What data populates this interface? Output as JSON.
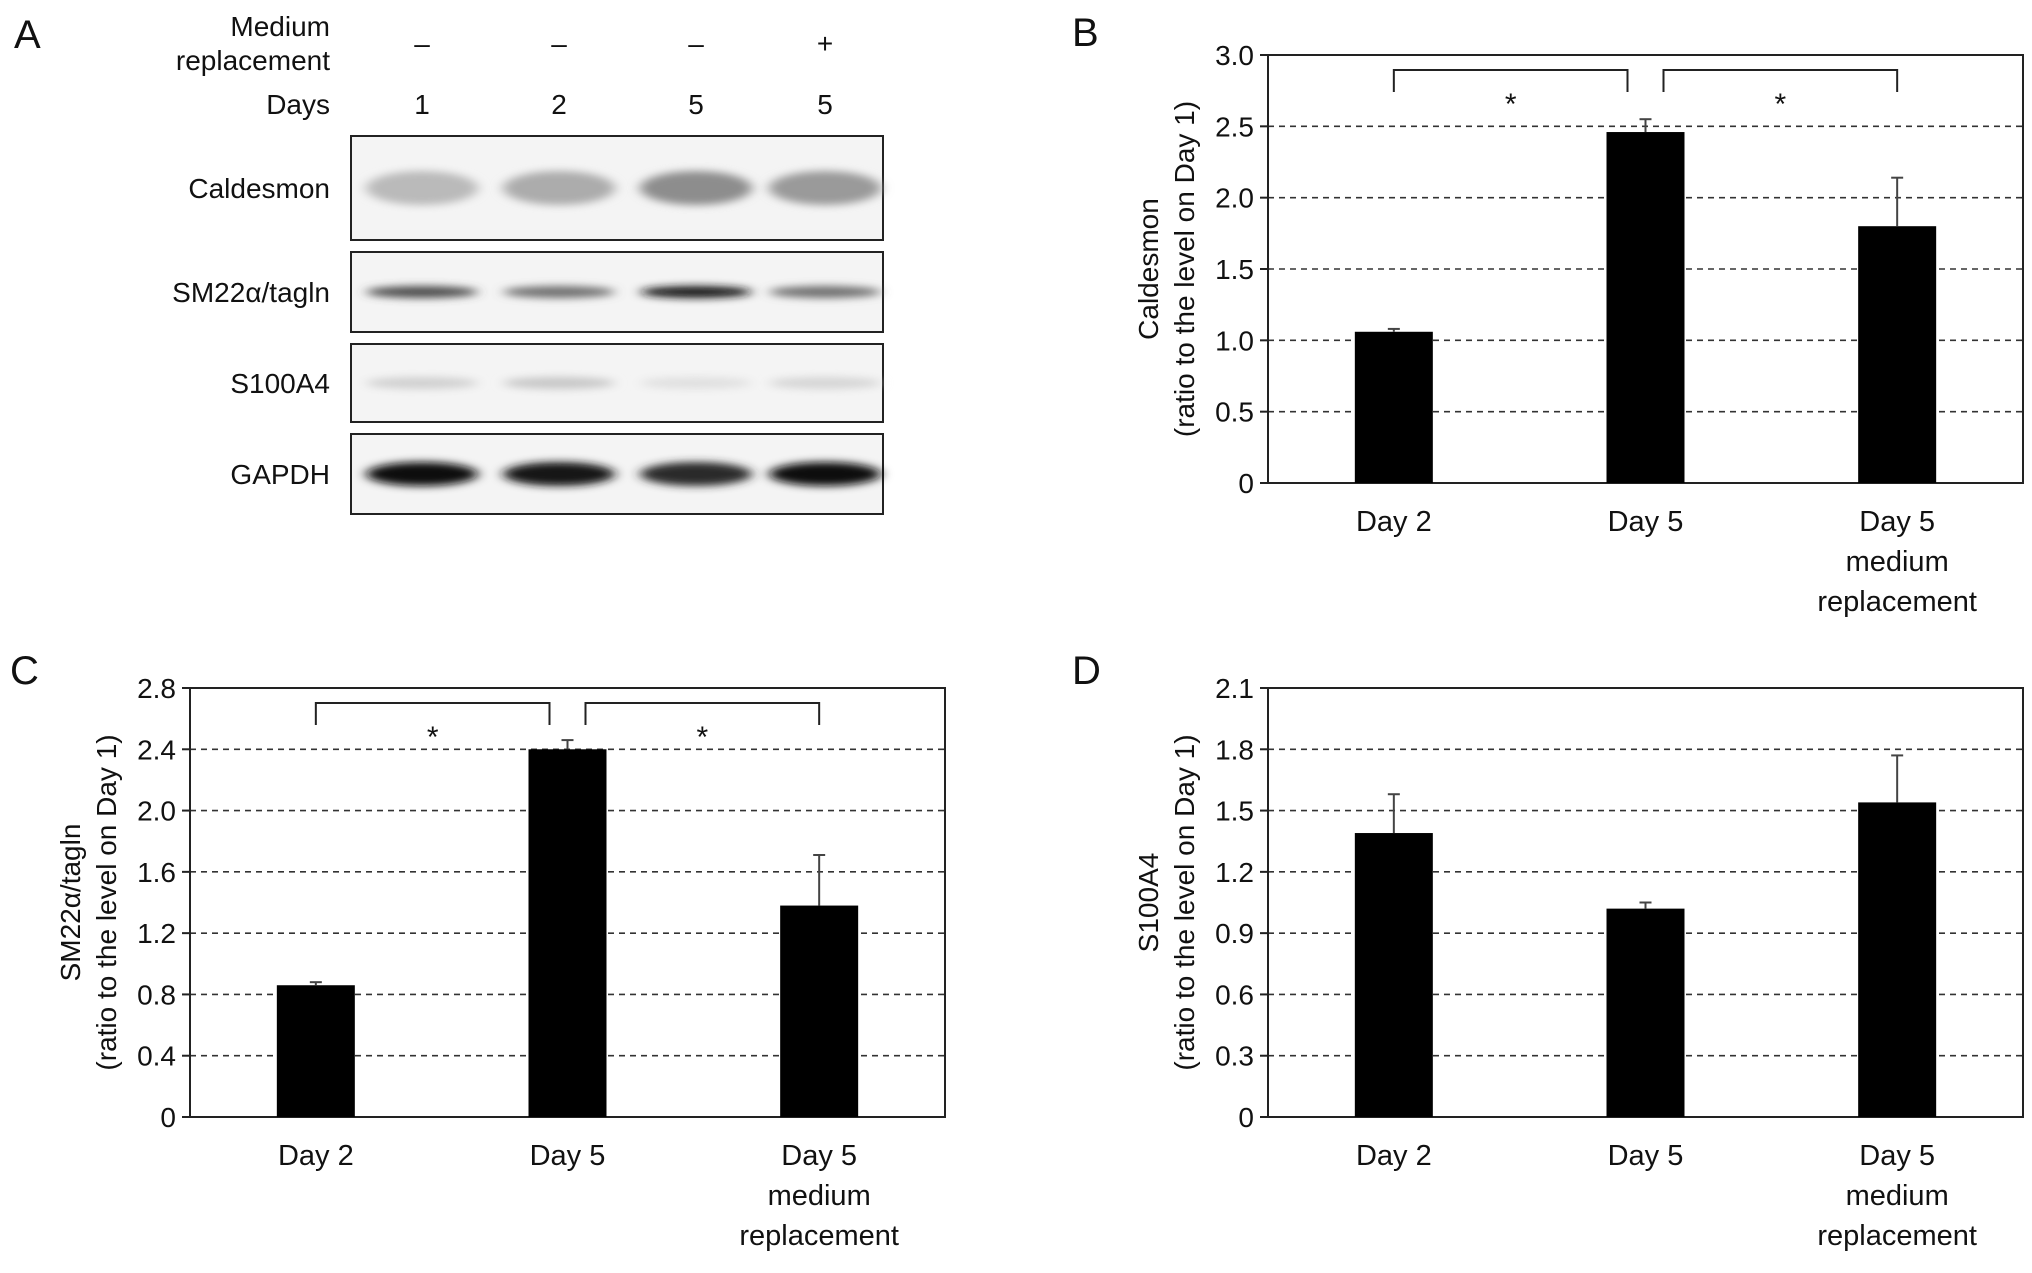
{
  "panels": {
    "a": {
      "letter": "A",
      "header_labels": [
        {
          "line1": "Medium",
          "line2": "replacement"
        },
        {
          "line1": "Days"
        }
      ],
      "treatment": [
        "–",
        "–",
        "–",
        "+"
      ],
      "days": [
        "1",
        "2",
        "5",
        "5"
      ],
      "blots": [
        {
          "label": "Caldesmon",
          "intensity": [
            0.22,
            0.28,
            0.42,
            0.36
          ]
        },
        {
          "label": "SM22α/tagln",
          "intensity": [
            0.7,
            0.55,
            0.95,
            0.55
          ]
        },
        {
          "label": "S100A4",
          "intensity": [
            0.12,
            0.16,
            0.05,
            0.1
          ]
        },
        {
          "label": "GAPDH",
          "intensity": [
            1.0,
            0.95,
            0.85,
            1.0
          ]
        }
      ]
    },
    "b": {
      "letter": "B"
    },
    "c": {
      "letter": "C"
    },
    "d": {
      "letter": "D"
    }
  },
  "chart_data": [
    {
      "panel": "B",
      "type": "bar",
      "categories": [
        "Day 2",
        "Day 5",
        "Day 5\nmedium\nreplacement"
      ],
      "values": [
        1.06,
        2.46,
        1.8
      ],
      "errors": [
        0.02,
        0.09,
        0.34
      ],
      "ylabel": "Caldesmon\n(ratio to the level on Day 1)",
      "ylim": [
        0,
        3.0
      ],
      "yticks": [
        "0",
        "0.5",
        "1.0",
        "1.5",
        "2.0",
        "2.5",
        "3.0"
      ],
      "grid": "dashed horizontal",
      "significance": [
        {
          "from": 0,
          "to": 1,
          "label": "*"
        },
        {
          "from": 1,
          "to": 2,
          "label": "*"
        }
      ]
    },
    {
      "panel": "C",
      "type": "bar",
      "categories": [
        "Day 2",
        "Day 5",
        "Day 5\nmedium\nreplacement"
      ],
      "values": [
        0.86,
        2.4,
        1.38
      ],
      "errors": [
        0.02,
        0.06,
        0.33
      ],
      "ylabel": "SM22α/tagln\n(ratio to the level on Day 1)",
      "ylim": [
        0,
        2.8
      ],
      "yticks": [
        "0",
        "0.4",
        "0.8",
        "1.2",
        "1.6",
        "2.0",
        "2.4",
        "2.8"
      ],
      "grid": "dashed horizontal",
      "significance": [
        {
          "from": 0,
          "to": 1,
          "label": "*"
        },
        {
          "from": 1,
          "to": 2,
          "label": "*"
        }
      ]
    },
    {
      "panel": "D",
      "type": "bar",
      "categories": [
        "Day 2",
        "Day 5",
        "Day 5\nmedium\nreplacement"
      ],
      "values": [
        1.39,
        1.02,
        1.54
      ],
      "errors": [
        0.19,
        0.03,
        0.23
      ],
      "ylabel": "S100A4\n(ratio to the level on Day 1)",
      "ylim": [
        0,
        2.1
      ],
      "yticks": [
        "0",
        "0.3",
        "0.6",
        "0.9",
        "1.2",
        "1.5",
        "1.8",
        "2.1"
      ],
      "grid": "dashed horizontal",
      "significance": []
    }
  ]
}
